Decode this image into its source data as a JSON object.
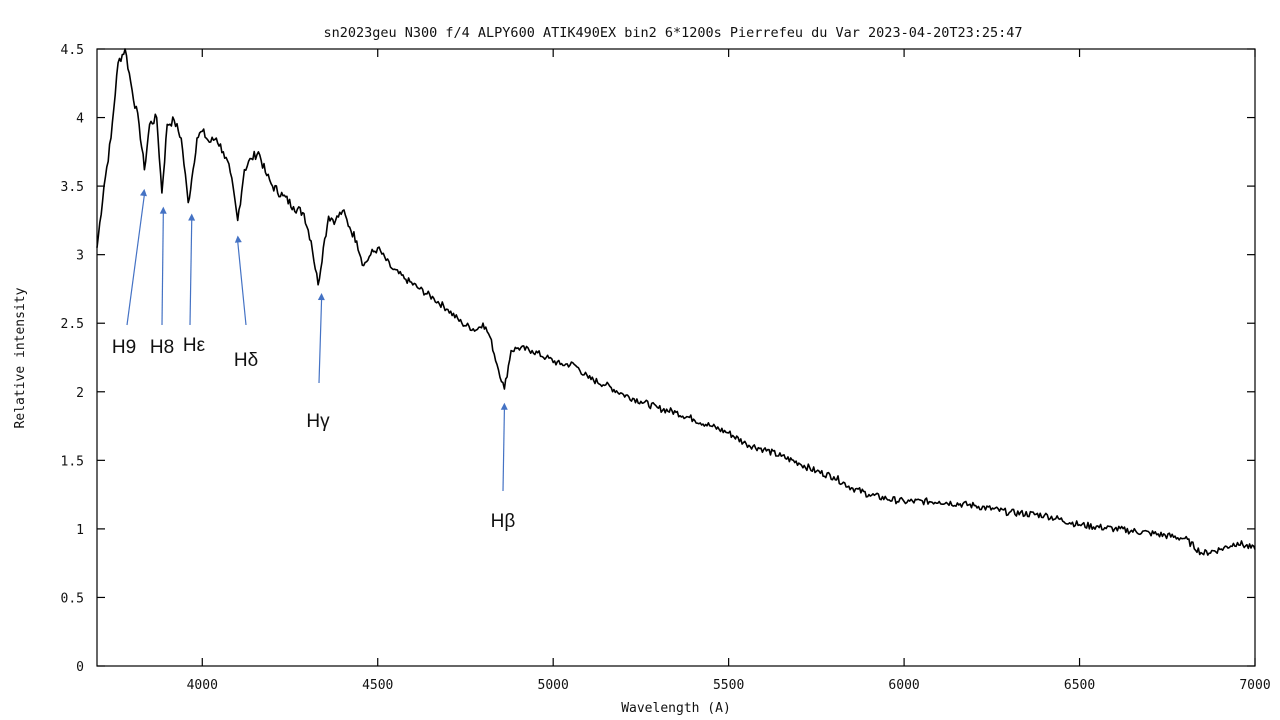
{
  "chart_data": {
    "type": "line",
    "title": "sn2023geu  N300 f/4 ALPY600 ATIK490EX bin2 6*1200s Pierrefeu du Var 2023-04-20T23:25:47",
    "xlabel": "Wavelength (A)",
    "ylabel": "Relative intensity",
    "xlim": [
      3700,
      7000
    ],
    "ylim": [
      0,
      4.5
    ],
    "xticks": [
      "4000",
      "4500",
      "5000",
      "5500",
      "6000",
      "6500",
      "7000"
    ],
    "yticks": [
      "0",
      "0.5",
      "1",
      "1.5",
      "2",
      "2.5",
      "3",
      "3.5",
      "4",
      "4.5"
    ],
    "grid": false,
    "series": [
      {
        "x": [
          3700,
          3720,
          3740,
          3760,
          3780,
          3800,
          3820,
          3835,
          3850,
          3870,
          3885,
          3900,
          3920,
          3940,
          3960,
          3970,
          3985,
          4000,
          4020,
          4040,
          4060,
          4080,
          4101,
          4120,
          4140,
          4160,
          4180,
          4200,
          4230,
          4260,
          4290,
          4310,
          4330,
          4345,
          4360,
          4380,
          4400,
          4420,
          4440,
          4460,
          4480,
          4500,
          4540,
          4580,
          4620,
          4660,
          4700,
          4740,
          4780,
          4800,
          4820,
          4840,
          4861,
          4880,
          4900,
          4940,
          4980,
          5020,
          5060,
          5100,
          5150,
          5200,
          5250,
          5300,
          5350,
          5400,
          5450,
          5500,
          5550,
          5600,
          5650,
          5700,
          5750,
          5800,
          5850,
          5900,
          5950,
          6000,
          6100,
          6200,
          6300,
          6400,
          6500,
          6600,
          6700,
          6800,
          6850,
          6900,
          6950,
          7000
        ],
        "values": [
          3.05,
          3.5,
          3.85,
          4.4,
          4.5,
          4.2,
          3.95,
          3.62,
          3.95,
          4.0,
          3.45,
          3.95,
          3.98,
          3.85,
          3.38,
          3.55,
          3.85,
          3.9,
          3.82,
          3.85,
          3.75,
          3.6,
          3.25,
          3.62,
          3.7,
          3.75,
          3.6,
          3.5,
          3.43,
          3.35,
          3.3,
          3.1,
          2.78,
          3.05,
          3.28,
          3.25,
          3.32,
          3.2,
          3.1,
          2.92,
          3.0,
          3.05,
          2.9,
          2.82,
          2.75,
          2.68,
          2.6,
          2.5,
          2.45,
          2.5,
          2.4,
          2.2,
          2.02,
          2.3,
          2.32,
          2.3,
          2.25,
          2.2,
          2.2,
          2.1,
          2.05,
          1.98,
          1.93,
          1.88,
          1.85,
          1.8,
          1.75,
          1.7,
          1.62,
          1.58,
          1.53,
          1.48,
          1.42,
          1.38,
          1.3,
          1.25,
          1.22,
          1.2,
          1.2,
          1.17,
          1.12,
          1.1,
          1.03,
          1.0,
          0.97,
          0.93,
          0.82,
          0.85,
          0.9,
          0.85
        ]
      }
    ],
    "annotations": [
      {
        "label": "H9",
        "x": 3835,
        "y": 3.48
      },
      {
        "label": "H8",
        "x": 3889,
        "y": 3.35
      },
      {
        "label": "Hε",
        "x": 3970,
        "y": 3.3
      },
      {
        "label": "Hδ",
        "x": 4101,
        "y": 3.14
      },
      {
        "label": "Hγ",
        "x": 4340,
        "y": 2.72
      },
      {
        "label": "Hβ",
        "x": 4861,
        "y": 1.92
      }
    ]
  }
}
